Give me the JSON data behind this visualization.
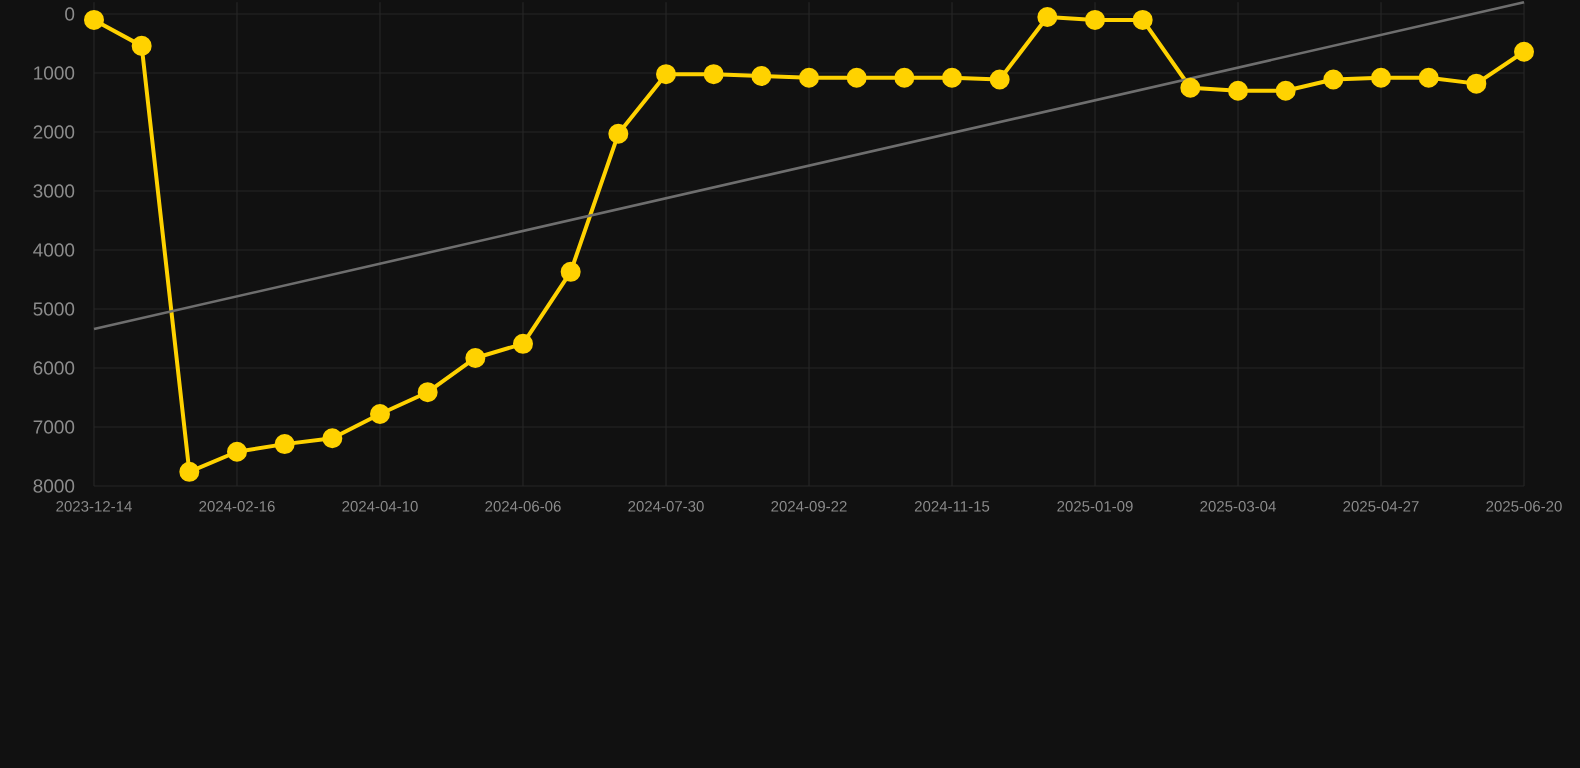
{
  "chart_data": {
    "type": "line",
    "categories": [
      "2023-12-14",
      null,
      null,
      "2024-02-16",
      null,
      null,
      "2024-04-10",
      null,
      null,
      "2024-06-06",
      null,
      null,
      "2024-07-30",
      null,
      null,
      "2024-09-22",
      null,
      null,
      "2024-11-15",
      null,
      null,
      "2025-01-09",
      null,
      null,
      "2025-03-04",
      null,
      null,
      "2025-04-27",
      null,
      null,
      "2025-06-20"
    ],
    "series": [
      {
        "color": "#ffd200",
        "marker": "circle",
        "values": [
          100,
          540,
          7760,
          7420,
          7290,
          7190,
          6780,
          6410,
          5830,
          5590,
          4370,
          2030,
          1020,
          1020,
          1050,
          1080,
          1080,
          1080,
          1080,
          1110,
          50,
          100,
          100,
          1250,
          1300,
          1300,
          1110,
          1080,
          1080,
          1180,
          640
        ]
      },
      {
        "color": "#6e6e6e",
        "marker": "none",
        "values": [
          5340,
          null,
          null,
          null,
          null,
          null,
          null,
          null,
          null,
          null,
          null,
          null,
          null,
          null,
          null,
          null,
          null,
          null,
          null,
          null,
          null,
          null,
          null,
          null,
          null,
          null,
          null,
          null,
          null,
          null,
          -200
        ]
      }
    ],
    "ylim": [
      8000,
      -200
    ],
    "yticks": [
      0,
      1000,
      2000,
      3000,
      4000,
      5000,
      6000,
      7000,
      8000
    ],
    "grid": true,
    "line_style": "solid"
  }
}
